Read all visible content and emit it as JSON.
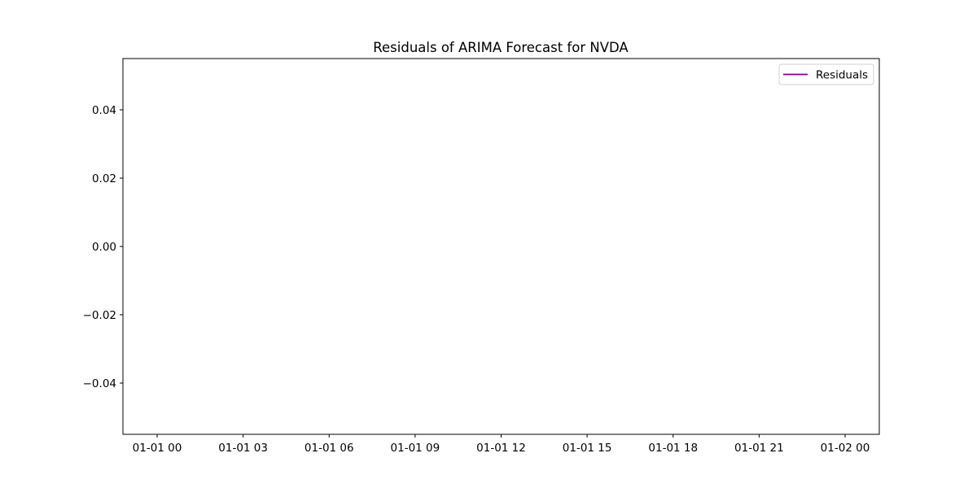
{
  "chart_data": {
    "type": "line",
    "title": "Residuals of ARIMA Forecast for NVDA",
    "xlabel": "",
    "ylabel": "",
    "x_ticks": [
      "01-01 00",
      "01-01 03",
      "01-01 06",
      "01-01 09",
      "01-01 12",
      "01-01 15",
      "01-01 18",
      "01-01 21",
      "01-02 00"
    ],
    "y_ticks": [
      "0.04",
      "0.02",
      "0.00",
      "−0.02",
      "−0.04"
    ],
    "y_tick_values": [
      0.04,
      0.02,
      0.0,
      -0.02,
      -0.04
    ],
    "ylim": [
      -0.055,
      0.055
    ],
    "xlim": [
      "01-01 00",
      "01-02 00"
    ],
    "grid": false,
    "legend_position": "top-right",
    "series": [
      {
        "name": "Residuals",
        "color": "#800080",
        "x": [],
        "y": []
      }
    ]
  }
}
